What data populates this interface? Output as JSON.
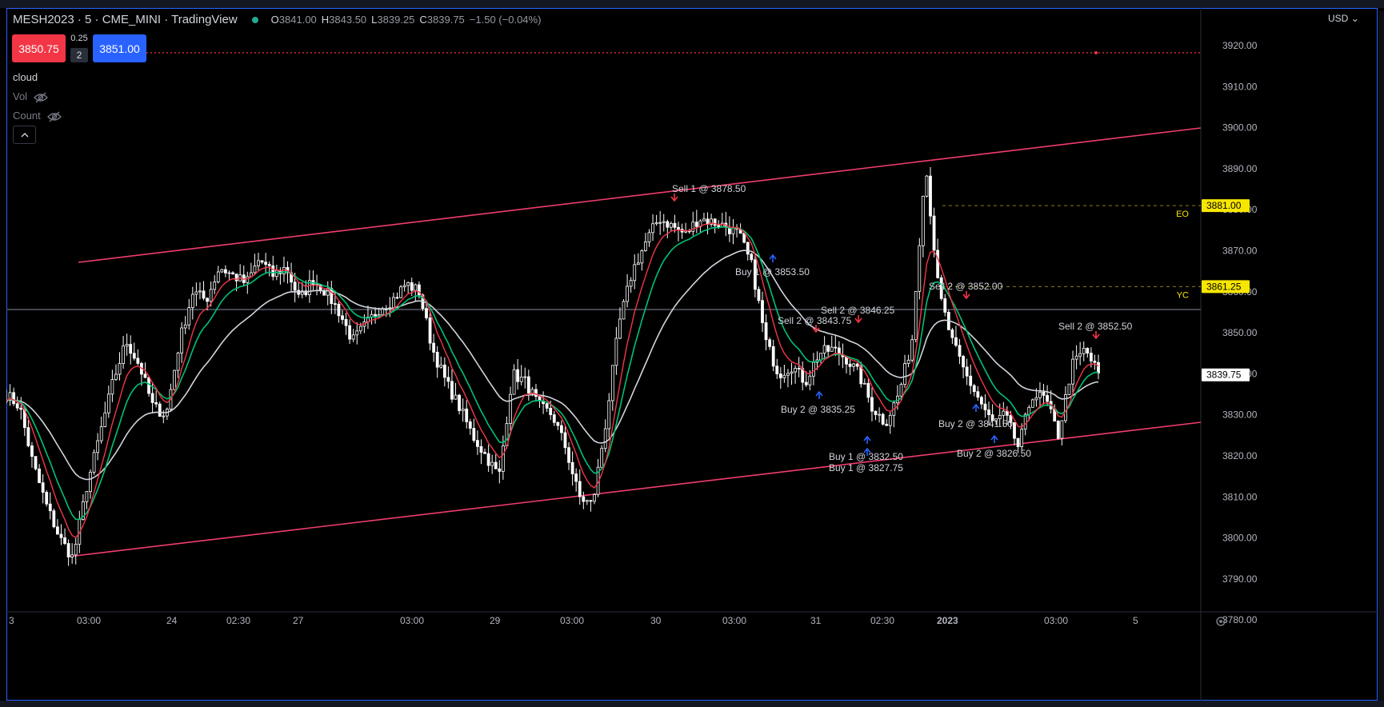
{
  "header": {
    "symbol_title": "MESH2023 · 5 · CME_MINI · TradingView",
    "ohlc": {
      "o_label": "O",
      "o": "3841.00",
      "h_label": "H",
      "h": "3843.50",
      "l_label": "L",
      "l": "3839.25",
      "c_label": "C",
      "c": "3839.75",
      "change": "−1.50 (−0.04%)"
    }
  },
  "trade": {
    "sell_price": "3850.75",
    "buy_price": "3851.00",
    "spread": "0.25",
    "quantity": "2"
  },
  "indicators": [
    {
      "name": "cloud",
      "hidden": false
    },
    {
      "name": "Vol",
      "hidden": true
    },
    {
      "name": "Count",
      "hidden": true
    }
  ],
  "currency": "USD",
  "price_axis": {
    "ticks": [
      "3920.00",
      "3910.00",
      "3900.00",
      "3890.00",
      "3880.00",
      "3870.00",
      "3860.00",
      "3850.00",
      "3840.00",
      "3830.00",
      "3820.00",
      "3810.00",
      "3800.00",
      "3790.00",
      "3780.00"
    ],
    "labels": [
      {
        "tag": "EO",
        "price": "3881.00",
        "color": "#f7e600"
      },
      {
        "tag": "YC",
        "price": "3861.25",
        "color": "#f7e600"
      },
      {
        "tag": "",
        "price": "3839.75",
        "color": "#ffffff"
      }
    ]
  },
  "time_axis": [
    "3",
    "03:00",
    "24",
    "02:30",
    "27",
    "03:00",
    "29",
    "03:00",
    "30",
    "03:00",
    "31",
    "02:30",
    "2023",
    "03:00",
    "5"
  ],
  "annotations": [
    "Sell 1 @ 3878.50",
    "Buy 1 @ 3853.50",
    "Sell 2 @ 3846.25",
    "Sell 2 @ 3843.75",
    "Buy 2 @ 3835.25",
    "Buy 1 @ 3832.50",
    "Buy 1 @ 3827.75",
    "Sell 2 @ 3852.00",
    "Buy 2 @ 3841.50",
    "Buy 2 @ 3826.50",
    "Sell 2 @ 3852.50"
  ],
  "colors": {
    "channel": "#f23d6d",
    "fast_ma": "#f23645",
    "mid_ma": "#00c176",
    "slow_ma": "#d1d4dc",
    "candle": "#ffffff",
    "sell_arrow": "#f23645",
    "buy_arrow": "#2962ff",
    "frame": "#2962ff"
  },
  "chart_data": {
    "type": "candlestick",
    "title": "MESH2023 · 5 · CME_MINI · TradingView",
    "ylim": [
      3774,
      3928
    ],
    "close_path": [
      3835,
      3832,
      3818,
      3808,
      3800,
      3795,
      3812,
      3825,
      3838,
      3848,
      3842,
      3832,
      3830,
      3848,
      3860,
      3858,
      3866,
      3864,
      3862,
      3868,
      3864,
      3866,
      3858,
      3863,
      3860,
      3855,
      3848,
      3852,
      3856,
      3858,
      3862,
      3860,
      3846,
      3838,
      3832,
      3825,
      3820,
      3815,
      3840,
      3838,
      3832,
      3830,
      3822,
      3810,
      3808,
      3828,
      3852,
      3865,
      3872,
      3878,
      3876,
      3874,
      3878,
      3877,
      3876,
      3874,
      3866,
      3848,
      3840,
      3842,
      3838,
      3845,
      3846,
      3844,
      3840,
      3832,
      3828,
      3835,
      3848,
      3892,
      3860,
      3848,
      3840,
      3834,
      3828,
      3830,
      3822,
      3835,
      3834,
      3825,
      3842,
      3846,
      3840
    ]
  }
}
